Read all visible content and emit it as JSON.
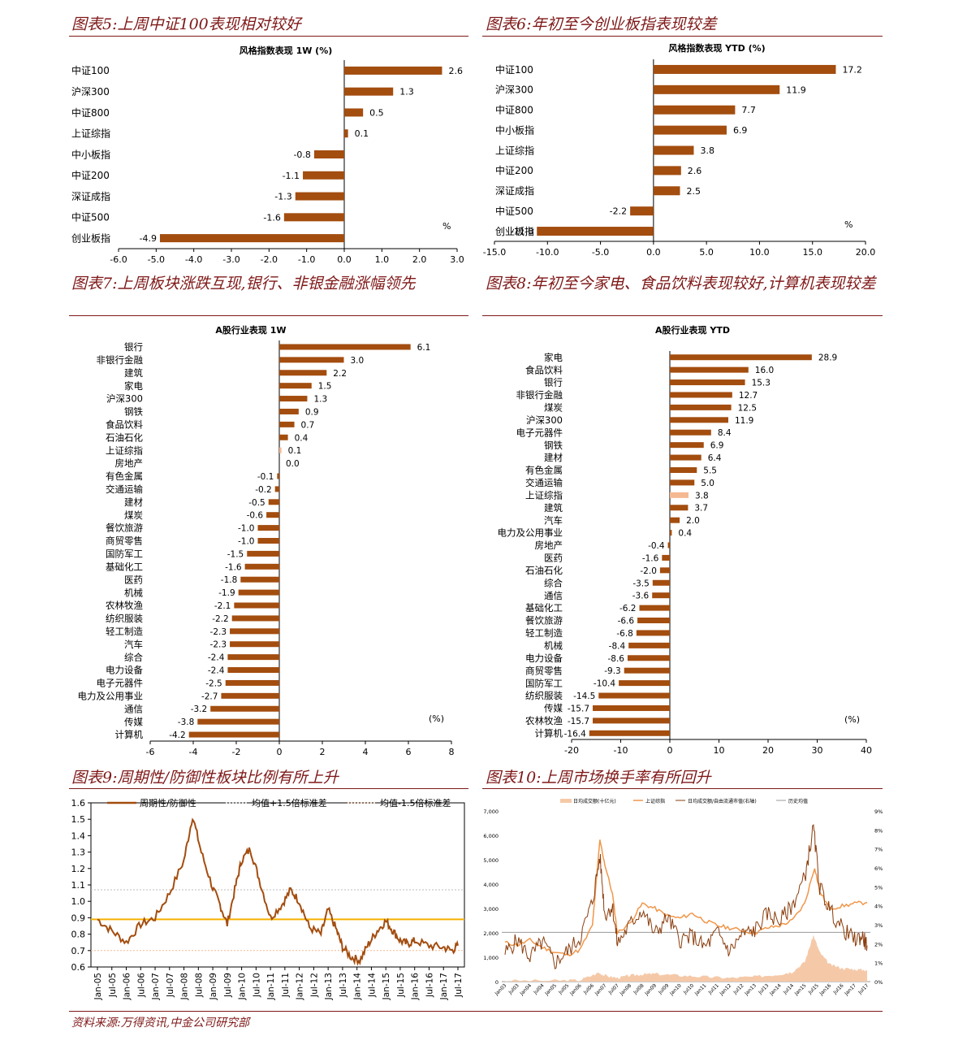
{
  "panel_titles": [
    "图表5:上周中证100表现相对较好",
    "图表6:年初至今创业板指表现较差",
    "图表7:上周板块涨跌互现,银行、非银金融涨幅领先",
    "图表8:年初至今家电、食品饮料表现较好,计算机表现较差",
    "图表9:周期性/防御性板块比例有所上升",
    "图表10:上周市场换手率有所回升"
  ],
  "footer": "资料来源:万得资讯,中金公司研究部",
  "colors": {
    "bar": "#a34d0f",
    "highlight": "#f5b991",
    "title": "#7f1818",
    "mean": "#f5b000",
    "line": "#a34d0f"
  },
  "chart_data": [
    {
      "type": "bar",
      "orientation": "horizontal",
      "title": "风格指数表现 1W (%)",
      "unit_label": "%",
      "categories": [
        "中证100",
        "沪深300",
        "中证800",
        "上证综指",
        "中小板指",
        "中证200",
        "深证成指",
        "中证500",
        "创业板指"
      ],
      "values": [
        2.6,
        1.3,
        0.5,
        0.1,
        -0.8,
        -1.1,
        -1.3,
        -1.6,
        -4.9
      ],
      "value_labels": [
        "2.6",
        "1.3",
        "0.5",
        "0.1",
        "-0.8",
        "-1.1",
        "-1.3",
        "-1.6",
        "-4.9"
      ],
      "xlim": [
        -6,
        3
      ],
      "xticks": [
        "-6.0",
        "-5.0",
        "-4.0",
        "-3.0",
        "-2.0",
        "-1.0",
        "0.0",
        "1.0",
        "2.0",
        "3.0"
      ],
      "highlight": []
    },
    {
      "type": "bar",
      "orientation": "horizontal",
      "title": "风格指数表现 YTD (%)",
      "unit_label": "%",
      "categories": [
        "中证100",
        "沪深300",
        "中证800",
        "中小板指",
        "上证综指",
        "中证200",
        "深证成指",
        "中证500",
        "创业板指"
      ],
      "values": [
        17.2,
        11.9,
        7.7,
        6.9,
        3.8,
        2.6,
        2.5,
        -2.2,
        -11.0
      ],
      "value_labels": [
        "17.2",
        "11.9",
        "7.7",
        "6.9",
        "3.8",
        "2.6",
        "2.5",
        "-2.2",
        "-11.0"
      ],
      "xlim": [
        -15,
        20
      ],
      "xticks": [
        "-15.0",
        "-10.0",
        "-5.0",
        "0.0",
        "5.0",
        "10.0",
        "15.0",
        "20.0"
      ],
      "highlight": []
    },
    {
      "type": "bar",
      "orientation": "horizontal",
      "title": "A股行业表现 1W",
      "unit_label": "(%)",
      "categories": [
        "银行",
        "非银行金融",
        "建筑",
        "家电",
        "沪深300",
        "钢铁",
        "食品饮料",
        "石油石化",
        "上证综指",
        "房地产",
        "有色金属",
        "交通运输",
        "建材",
        "煤炭",
        "餐饮旅游",
        "商贸零售",
        "国防军工",
        "基础化工",
        "医药",
        "机械",
        "农林牧渔",
        "纺织服装",
        "轻工制造",
        "汽车",
        "综合",
        "电力设备",
        "电子元器件",
        "电力及公用事业",
        "通信",
        "传媒",
        "计算机"
      ],
      "values": [
        6.1,
        3.0,
        2.2,
        1.5,
        1.3,
        0.9,
        0.7,
        0.4,
        0.1,
        0.0,
        -0.1,
        -0.2,
        -0.5,
        -0.6,
        -1.0,
        -1.0,
        -1.5,
        -1.6,
        -1.8,
        -1.9,
        -2.1,
        -2.2,
        -2.3,
        -2.3,
        -2.4,
        -2.4,
        -2.5,
        -2.7,
        -3.2,
        -3.8,
        -4.2
      ],
      "value_labels": [
        "6.1",
        "3.0",
        "2.2",
        "1.5",
        "1.3",
        "0.9",
        "0.7",
        "0.4",
        "0.1",
        "0.0",
        "-0.1",
        "-0.2",
        "-0.5",
        "-0.6",
        "-1.0",
        "-1.0",
        "-1.5",
        "-1.6",
        "-1.8",
        "-1.9",
        "-2.1",
        "-2.2",
        "-2.3",
        "-2.3",
        "-2.4",
        "-2.4",
        "-2.5",
        "-2.7",
        "-3.2",
        "-3.8",
        "-4.2"
      ],
      "xlim": [
        -6,
        8
      ],
      "xticks": [
        "-6",
        "-4",
        "-2",
        "0",
        "2",
        "4",
        "6",
        "8"
      ],
      "highlight": [
        8
      ]
    },
    {
      "type": "bar",
      "orientation": "horizontal",
      "title": "A股行业表现 YTD",
      "unit_label": "(%)",
      "categories": [
        "家电",
        "食品饮料",
        "银行",
        "非银行金融",
        "煤炭",
        "沪深300",
        "电子元器件",
        "钢铁",
        "建材",
        "有色金属",
        "交通运输",
        "上证综指",
        "建筑",
        "汽车",
        "电力及公用事业",
        "房地产",
        "医药",
        "石油石化",
        "综合",
        "通信",
        "基础化工",
        "餐饮旅游",
        "轻工制造",
        "机械",
        "电力设备",
        "商贸零售",
        "国防军工",
        "纺织服装",
        "传媒",
        "农林牧渔",
        "计算机"
      ],
      "values": [
        28.9,
        16.0,
        15.3,
        12.7,
        12.5,
        11.9,
        8.4,
        6.9,
        6.4,
        5.5,
        5.0,
        3.8,
        3.7,
        2.0,
        0.4,
        -0.4,
        -1.6,
        -2.0,
        -3.5,
        -3.6,
        -6.2,
        -6.6,
        -6.8,
        -8.4,
        -8.6,
        -9.3,
        -10.4,
        -14.5,
        -15.7,
        -15.7,
        -16.4
      ],
      "value_labels": [
        "28.9",
        "16.0",
        "15.3",
        "12.7",
        "12.5",
        "11.9",
        "8.4",
        "6.9",
        "6.4",
        "5.5",
        "5.0",
        "3.8",
        "3.7",
        "2.0",
        "0.4",
        "-0.4",
        "-1.6",
        "-2.0",
        "-3.5",
        "-3.6",
        "-6.2",
        "-6.6",
        "-6.8",
        "-8.4",
        "-8.6",
        "-9.3",
        "-10.4",
        "-14.5",
        "-15.7",
        "-15.7",
        "-16.4"
      ],
      "xlim": [
        -20,
        40
      ],
      "xticks": [
        "-20",
        "-10",
        "0",
        "10",
        "20",
        "30",
        "40"
      ],
      "highlight": [
        11
      ]
    },
    {
      "type": "line",
      "legend": [
        "周期性/防御性",
        "均值+1.5倍标准差",
        "均值-1.5倍标准差"
      ],
      "ylim": [
        0.6,
        1.6
      ],
      "yticks": [
        "0.6",
        "0.7",
        "0.8",
        "0.9",
        "1.0",
        "1.1",
        "1.2",
        "1.3",
        "1.4",
        "1.5",
        "1.6"
      ],
      "xtick_labels": [
        "Jan-05",
        "Jul-05",
        "Jan-06",
        "Jul-06",
        "Jan-07",
        "Jul-07",
        "Jan-08",
        "Jul-08",
        "Jan-09",
        "Jul-09",
        "Jan-10",
        "Jul-10",
        "Jan-11",
        "Jul-11",
        "Jan-12",
        "Jul-12",
        "Jan-13",
        "Jul-13",
        "Jan-14",
        "Jul-14",
        "Jan-15",
        "Jul-15",
        "Jan-16",
        "Jul-16",
        "Jan-17",
        "Jul-17"
      ],
      "mean": 0.89,
      "upper": 1.07,
      "lower": 0.7,
      "series_points": [
        [
          0,
          0.89
        ],
        [
          1,
          0.82
        ],
        [
          2,
          0.75
        ],
        [
          3,
          0.86
        ],
        [
          4,
          0.9
        ],
        [
          5,
          1.05
        ],
        [
          6,
          1.25
        ],
        [
          6.6,
          1.52
        ],
        [
          7.2,
          1.3
        ],
        [
          8,
          1.08
        ],
        [
          8.5,
          0.98
        ],
        [
          9,
          0.86
        ],
        [
          9.6,
          1.1
        ],
        [
          10,
          1.25
        ],
        [
          10.6,
          1.32
        ],
        [
          11.2,
          1.14
        ],
        [
          12,
          0.9
        ],
        [
          12.8,
          0.98
        ],
        [
          13.4,
          1.07
        ],
        [
          14,
          1.0
        ],
        [
          14.7,
          0.84
        ],
        [
          15.5,
          0.8
        ],
        [
          16,
          0.95
        ],
        [
          16.6,
          0.82
        ],
        [
          17,
          0.72
        ],
        [
          17.6,
          0.66
        ],
        [
          18.2,
          0.64
        ],
        [
          18.8,
          0.74
        ],
        [
          19.4,
          0.82
        ],
        [
          20,
          0.88
        ],
        [
          20.5,
          0.82
        ],
        [
          21,
          0.76
        ],
        [
          21.5,
          0.74
        ],
        [
          22,
          0.76
        ],
        [
          23,
          0.73
        ],
        [
          24,
          0.72
        ],
        [
          24.6,
          0.7
        ],
        [
          25,
          0.73
        ]
      ]
    },
    {
      "type": "area+line",
      "legend": [
        "日均成交额(十亿元)",
        "上证综指",
        "日均成交额/自由流通市值(右轴)",
        "历史均值"
      ],
      "yticks_left": [
        "0",
        "1,000",
        "2,000",
        "3,000",
        "4,000",
        "5,000",
        "6,000",
        "7,000"
      ],
      "yticks_right": [
        "0%",
        "1%",
        "2%",
        "3%",
        "4%",
        "5%",
        "6%",
        "7%",
        "8%",
        "9%"
      ],
      "xtick_labels": [
        "Jan03",
        "Jul03",
        "Jan04",
        "Jul04",
        "Jan05",
        "Jul05",
        "Jan06",
        "Jul06",
        "Jan07",
        "Jul07",
        "Jan08",
        "Jul08",
        "Jan09",
        "Jul09",
        "Jan10",
        "Jul10",
        "Jan11",
        "Jul11",
        "Jan12",
        "Jul12",
        "Jan13",
        "Jul13",
        "Jan14",
        "Jul14",
        "Jan15",
        "Jul15",
        "Jan16",
        "Jul16",
        "Jan17",
        "Jul17"
      ],
      "hist_mean_right": 2.6,
      "turnover_points": [
        [
          0,
          1.5
        ],
        [
          1,
          2.2
        ],
        [
          2,
          1.3
        ],
        [
          3,
          2.1
        ],
        [
          4,
          1.0
        ],
        [
          5,
          1.6
        ],
        [
          6,
          2.3
        ],
        [
          7,
          4.2
        ],
        [
          7.6,
          6.6
        ],
        [
          8,
          3.5
        ],
        [
          8.6,
          4.0
        ],
        [
          9,
          2.0
        ],
        [
          10,
          3.0
        ],
        [
          11,
          3.8
        ],
        [
          12,
          2.5
        ],
        [
          13,
          3.4
        ],
        [
          14,
          2.2
        ],
        [
          15,
          2.4
        ],
        [
          16,
          1.8
        ],
        [
          17,
          2.6
        ],
        [
          18,
          1.6
        ],
        [
          19,
          2.5
        ],
        [
          20,
          2.7
        ],
        [
          21,
          3.6
        ],
        [
          22,
          3.2
        ],
        [
          23,
          4.0
        ],
        [
          24,
          5.5
        ],
        [
          24.7,
          8.1
        ],
        [
          25.2,
          5.0
        ],
        [
          26,
          3.8
        ],
        [
          27,
          2.8
        ],
        [
          28,
          2.2
        ],
        [
          28.6,
          2.4
        ],
        [
          29,
          1.9
        ]
      ],
      "index_points": [
        [
          0,
          1600
        ],
        [
          1,
          1500
        ],
        [
          2,
          1700
        ],
        [
          3,
          1400
        ],
        [
          4,
          1200
        ],
        [
          5,
          1100
        ],
        [
          6,
          1300
        ],
        [
          7,
          2300
        ],
        [
          7.6,
          5800
        ],
        [
          8,
          4800
        ],
        [
          8.6,
          3600
        ],
        [
          9,
          2000
        ],
        [
          10,
          2400
        ],
        [
          11,
          3200
        ],
        [
          12,
          3000
        ],
        [
          13,
          2700
        ],
        [
          14,
          2600
        ],
        [
          15,
          2800
        ],
        [
          16,
          2500
        ],
        [
          17,
          2300
        ],
        [
          18,
          2200
        ],
        [
          19,
          2100
        ],
        [
          20,
          2000
        ],
        [
          21,
          2200
        ],
        [
          22,
          2300
        ],
        [
          23,
          2500
        ],
        [
          24,
          3200
        ],
        [
          24.8,
          4700
        ],
        [
          25.2,
          3700
        ],
        [
          26,
          3000
        ],
        [
          27,
          3100
        ],
        [
          28,
          3200
        ],
        [
          29,
          3250
        ]
      ],
      "volume_points": [
        [
          0,
          40
        ],
        [
          4,
          40
        ],
        [
          6,
          60
        ],
        [
          7.5,
          360
        ],
        [
          8,
          250
        ],
        [
          9,
          150
        ],
        [
          10,
          250
        ],
        [
          11,
          300
        ],
        [
          12,
          320
        ],
        [
          14,
          250
        ],
        [
          16,
          200
        ],
        [
          18,
          150
        ],
        [
          20,
          200
        ],
        [
          22,
          300
        ],
        [
          23,
          400
        ],
        [
          24,
          800
        ],
        [
          24.7,
          1900
        ],
        [
          25.2,
          1200
        ],
        [
          26,
          700
        ],
        [
          27,
          550
        ],
        [
          28,
          500
        ],
        [
          29,
          480
        ]
      ]
    }
  ]
}
